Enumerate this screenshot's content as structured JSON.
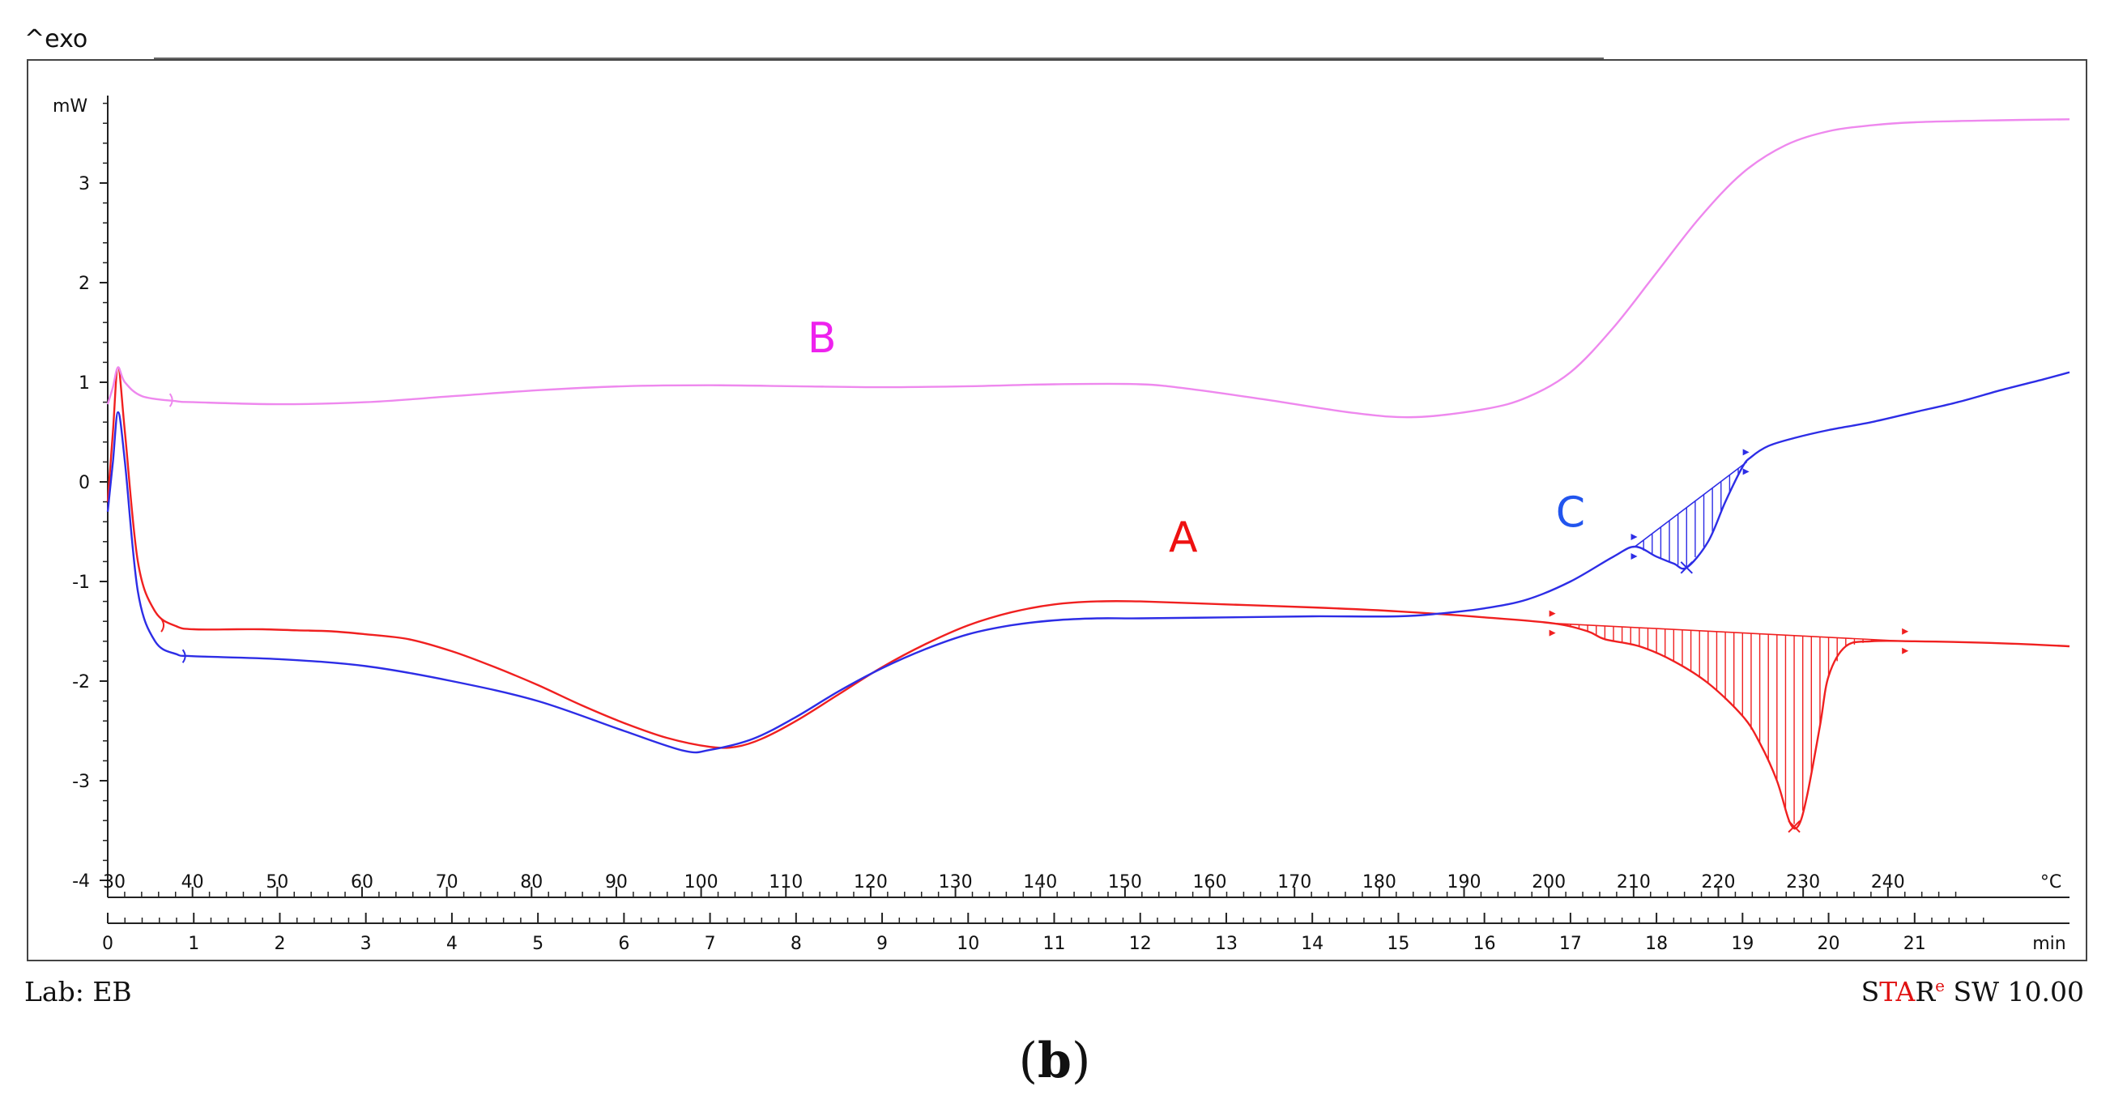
{
  "chart_data": {
    "type": "line",
    "exo_label": "^exo",
    "ylabel": "mW",
    "ylim": [
      -4,
      3.8
    ],
    "y_ticks": [
      3,
      2,
      1,
      0,
      -1,
      -2,
      -3,
      -4
    ],
    "temp_unit": "°C",
    "temp_ticks": [
      30,
      40,
      50,
      60,
      70,
      80,
      90,
      100,
      110,
      120,
      130,
      140,
      150,
      160,
      170,
      180,
      190,
      200,
      210,
      220,
      230,
      240
    ],
    "time_unit": "min",
    "time_ticks": [
      0,
      1,
      2,
      3,
      4,
      5,
      6,
      7,
      8,
      9,
      10,
      11,
      12,
      13,
      14,
      15,
      16,
      17,
      18,
      19,
      20,
      21
    ],
    "x_domain": [
      0,
      22.8
    ],
    "series": [
      {
        "name": "A",
        "color": "#f02020",
        "points": [
          [
            0.0,
            -0.2
          ],
          [
            0.06,
            0.5
          ],
          [
            0.12,
            1.15
          ],
          [
            0.2,
            0.5
          ],
          [
            0.35,
            -0.8
          ],
          [
            0.55,
            -1.3
          ],
          [
            0.8,
            -1.45
          ],
          [
            1.0,
            -1.48
          ],
          [
            1.5,
            -1.48
          ],
          [
            1.8,
            -1.48
          ],
          [
            2.2,
            -1.49
          ],
          [
            2.6,
            -1.5
          ],
          [
            3.0,
            -1.53
          ],
          [
            3.5,
            -1.58
          ],
          [
            4.0,
            -1.7
          ],
          [
            4.5,
            -1.86
          ],
          [
            5.0,
            -2.04
          ],
          [
            5.5,
            -2.24
          ],
          [
            6.0,
            -2.42
          ],
          [
            6.5,
            -2.57
          ],
          [
            7.0,
            -2.66
          ],
          [
            7.3,
            -2.66
          ],
          [
            7.6,
            -2.58
          ],
          [
            8.0,
            -2.4
          ],
          [
            8.5,
            -2.13
          ],
          [
            9.0,
            -1.86
          ],
          [
            9.5,
            -1.63
          ],
          [
            10.0,
            -1.44
          ],
          [
            10.5,
            -1.31
          ],
          [
            11.0,
            -1.23
          ],
          [
            11.5,
            -1.2
          ],
          [
            12.0,
            -1.2
          ],
          [
            13.0,
            -1.23
          ],
          [
            14.0,
            -1.26
          ],
          [
            15.0,
            -1.3
          ],
          [
            16.0,
            -1.36
          ],
          [
            16.8,
            -1.42
          ],
          [
            17.2,
            -1.5
          ],
          [
            17.4,
            -1.58
          ],
          [
            17.8,
            -1.65
          ],
          [
            18.2,
            -1.8
          ],
          [
            18.6,
            -2.02
          ],
          [
            19.0,
            -2.35
          ],
          [
            19.2,
            -2.62
          ],
          [
            19.4,
            -3.0
          ],
          [
            19.55,
            -3.42
          ],
          [
            19.65,
            -3.45
          ],
          [
            19.75,
            -3.15
          ],
          [
            19.9,
            -2.45
          ],
          [
            20.0,
            -1.95
          ],
          [
            20.2,
            -1.65
          ],
          [
            20.5,
            -1.6
          ],
          [
            21.0,
            -1.6
          ],
          [
            22.0,
            -1.62
          ],
          [
            22.8,
            -1.65
          ]
        ]
      },
      {
        "name": "B",
        "color": "#ee88ee",
        "points": [
          [
            0.0,
            0.78
          ],
          [
            0.06,
            0.95
          ],
          [
            0.12,
            1.15
          ],
          [
            0.2,
            1.0
          ],
          [
            0.4,
            0.86
          ],
          [
            0.8,
            0.81
          ],
          [
            1.0,
            0.8
          ],
          [
            2.0,
            0.78
          ],
          [
            3.0,
            0.8
          ],
          [
            4.0,
            0.86
          ],
          [
            5.0,
            0.92
          ],
          [
            6.0,
            0.96
          ],
          [
            7.0,
            0.97
          ],
          [
            8.0,
            0.96
          ],
          [
            9.0,
            0.95
          ],
          [
            10.0,
            0.96
          ],
          [
            11.0,
            0.98
          ],
          [
            12.0,
            0.98
          ],
          [
            12.6,
            0.93
          ],
          [
            13.5,
            0.82
          ],
          [
            14.5,
            0.69
          ],
          [
            15.2,
            0.65
          ],
          [
            16.0,
            0.73
          ],
          [
            16.5,
            0.85
          ],
          [
            17.0,
            1.1
          ],
          [
            17.5,
            1.55
          ],
          [
            18.0,
            2.1
          ],
          [
            18.5,
            2.65
          ],
          [
            19.0,
            3.1
          ],
          [
            19.5,
            3.38
          ],
          [
            20.0,
            3.52
          ],
          [
            20.5,
            3.58
          ],
          [
            21.0,
            3.61
          ],
          [
            22.0,
            3.63
          ],
          [
            22.8,
            3.64
          ]
        ]
      },
      {
        "name": "C",
        "color": "#2d2de6",
        "points": [
          [
            0.0,
            -0.3
          ],
          [
            0.06,
            0.2
          ],
          [
            0.12,
            0.7
          ],
          [
            0.2,
            0.2
          ],
          [
            0.35,
            -1.1
          ],
          [
            0.55,
            -1.6
          ],
          [
            0.8,
            -1.73
          ],
          [
            1.0,
            -1.75
          ],
          [
            2.0,
            -1.78
          ],
          [
            3.0,
            -1.85
          ],
          [
            4.0,
            -2.0
          ],
          [
            5.0,
            -2.2
          ],
          [
            6.0,
            -2.5
          ],
          [
            6.7,
            -2.7
          ],
          [
            7.0,
            -2.69
          ],
          [
            7.5,
            -2.58
          ],
          [
            8.0,
            -2.36
          ],
          [
            8.5,
            -2.1
          ],
          [
            9.0,
            -1.87
          ],
          [
            9.5,
            -1.68
          ],
          [
            10.0,
            -1.53
          ],
          [
            10.5,
            -1.44
          ],
          [
            11.0,
            -1.39
          ],
          [
            11.5,
            -1.37
          ],
          [
            12.0,
            -1.37
          ],
          [
            13.0,
            -1.36
          ],
          [
            14.0,
            -1.35
          ],
          [
            15.0,
            -1.35
          ],
          [
            15.5,
            -1.32
          ],
          [
            16.0,
            -1.27
          ],
          [
            16.5,
            -1.18
          ],
          [
            17.0,
            -1.0
          ],
          [
            17.5,
            -0.75
          ],
          [
            17.75,
            -0.65
          ],
          [
            18.0,
            -0.75
          ],
          [
            18.2,
            -0.82
          ],
          [
            18.35,
            -0.86
          ],
          [
            18.6,
            -0.6
          ],
          [
            18.8,
            -0.2
          ],
          [
            19.0,
            0.15
          ],
          [
            19.1,
            0.25
          ],
          [
            19.3,
            0.36
          ],
          [
            19.6,
            0.44
          ],
          [
            20.0,
            0.52
          ],
          [
            20.5,
            0.6
          ],
          [
            21.0,
            0.7
          ],
          [
            21.5,
            0.8
          ],
          [
            22.0,
            0.92
          ],
          [
            22.5,
            1.03
          ],
          [
            22.8,
            1.1
          ]
        ]
      }
    ],
    "annotations": [
      {
        "text": "A",
        "x": 12.5,
        "y": -0.7,
        "color": "#ee1111"
      },
      {
        "text": "B",
        "x": 8.3,
        "y": 1.3,
        "color": "#ee22ee"
      },
      {
        "text": "C",
        "x": 17.0,
        "y": -0.45,
        "color": "#2255ee"
      }
    ],
    "hatched_regions": [
      {
        "series": "A",
        "x_start": 16.8,
        "x_end": 20.9,
        "color": "#f02020"
      },
      {
        "series": "C",
        "x_start": 17.75,
        "x_end": 19.05,
        "color": "#2d2de6"
      }
    ]
  },
  "footer": {
    "lab_label": "Lab: EB",
    "software_star": "S",
    "software_ta": "TA",
    "software_r": "R",
    "software_e": "e",
    "software_version": " SW 10.00"
  },
  "caption": {
    "open": "(",
    "letter": "b",
    "close": ")"
  }
}
